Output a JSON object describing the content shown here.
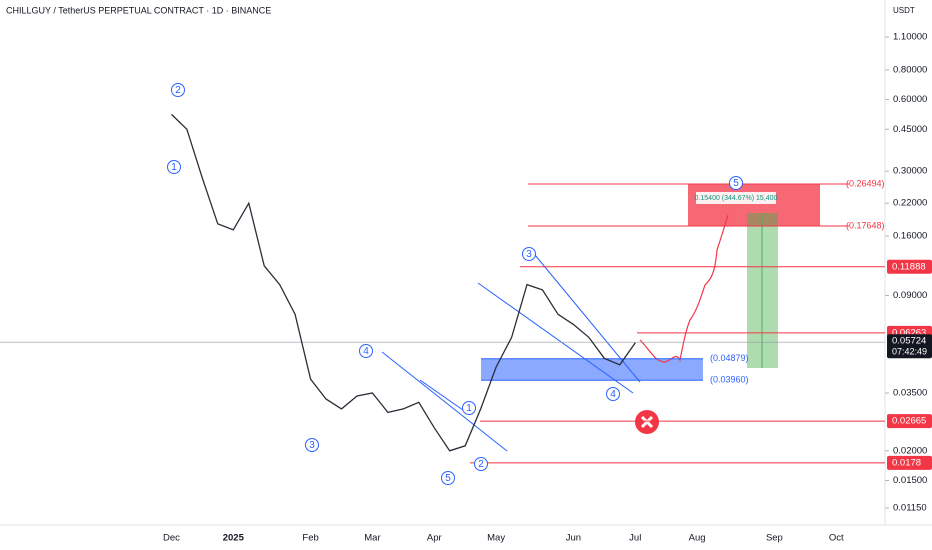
{
  "chart_data": {
    "type": "line",
    "title": "CHILLGUY / TetherUS PERPETUAL CONTRACT · 1D · BINANCE",
    "currency": "USDT",
    "log_scale": true,
    "color": "#2a2e39",
    "categories": [
      null,
      "Dec",
      null,
      null,
      null,
      "2025",
      null,
      null,
      null,
      null,
      "Feb",
      null,
      null,
      null,
      "Mar",
      null,
      null,
      null,
      "Apr",
      null,
      null,
      null,
      "May",
      null,
      null,
      null,
      null,
      "Jun",
      null,
      null,
      null,
      "Jul",
      null,
      null,
      null,
      "Aug",
      null,
      null,
      null,
      null,
      "Sep",
      null,
      null,
      null,
      "Oct",
      null,
      null,
      null
    ],
    "values": [
      null,
      0.52,
      0.45,
      0.28,
      0.18,
      0.17,
      0.22,
      0.12,
      0.1,
      0.075,
      0.04,
      0.033,
      0.03,
      0.034,
      0.035,
      0.029,
      0.03,
      0.032,
      0.025,
      0.02,
      0.021,
      0.03,
      0.045,
      0.06,
      0.1,
      0.095,
      0.075,
      0.068,
      0.06,
      0.049,
      0.046,
      0.057,
      null,
      null,
      null,
      null,
      null,
      null,
      null,
      null,
      null,
      null,
      null,
      null,
      null,
      null,
      null,
      null
    ],
    "ylim": [
      0.00975,
      1.574
    ],
    "yticks": [
      {
        "value": 1.1,
        "label": "1.10000"
      },
      {
        "value": 0.8,
        "label": "0.80000"
      },
      {
        "value": 0.6,
        "label": "0.60000"
      },
      {
        "value": 0.45,
        "label": "0.45000"
      },
      {
        "value": 0.3,
        "label": "0.30000"
      },
      {
        "value": 0.22,
        "label": "0.22000"
      },
      {
        "value": 0.16,
        "label": "0.16000"
      },
      {
        "value": 0.09,
        "label": "0.09000"
      },
      {
        "value": 0.035,
        "label": "0.03500"
      },
      {
        "value": 0.02,
        "label": "0.02000"
      },
      {
        "value": 0.015,
        "label": "0.01500"
      },
      {
        "value": 0.0115,
        "label": "0.01150"
      }
    ],
    "price_levels": [
      0.11888,
      0.06263,
      0.02665,
      0.0178
    ],
    "level_color": "#f23645",
    "current_price": 0.05724,
    "countdown": "07:42:49",
    "zone_labels": [
      {
        "value": 0.26494,
        "label": "(0.26494)"
      },
      {
        "value": 0.17648,
        "label": "(0.17648)"
      },
      {
        "value": 0.04879,
        "label": "(0.04879)"
      },
      {
        "value": 0.0396,
        "label": "(0.03960)"
      }
    ],
    "position_text": "0.15400 (344.67%) 15,400",
    "wave_labels": [
      "2",
      "1",
      "3",
      "4",
      "5",
      "1",
      "2",
      "3",
      "4",
      "5"
    ]
  }
}
